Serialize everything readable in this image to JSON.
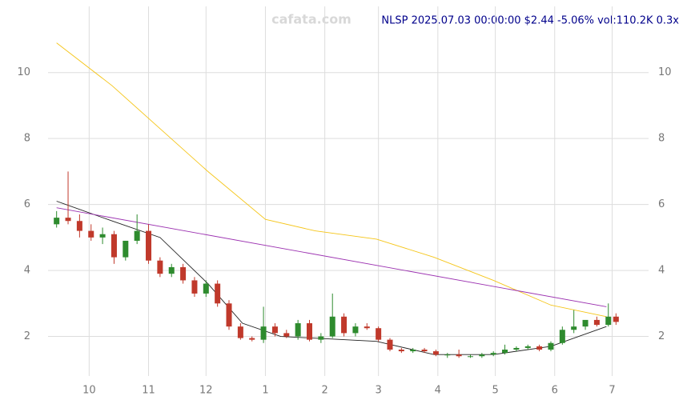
{
  "chart_data": {
    "type": "candlestick",
    "title": "NLSP 2025.07.03 00:00:00 $2.44 -5.06% vol:110.2K 0.3x",
    "watermark": "cafata.com",
    "xlim": [
      -34,
      292
    ],
    "ylim": [
      0.8,
      12.2
    ],
    "xticks": [
      {
        "value": 0,
        "label": "10"
      },
      {
        "value": 31,
        "label": "11"
      },
      {
        "value": 61,
        "label": "12"
      },
      {
        "value": 92,
        "label": "1"
      },
      {
        "value": 123,
        "label": "2"
      },
      {
        "value": 151,
        "label": "3"
      },
      {
        "value": 182,
        "label": "4"
      },
      {
        "value": 212,
        "label": "5"
      },
      {
        "value": 243,
        "label": "6"
      },
      {
        "value": 273,
        "label": "7"
      }
    ],
    "yticks": [
      2,
      4,
      6,
      8,
      10
    ],
    "grid": true,
    "up_color": "#2e8b2e",
    "down_color": "#c0392b",
    "candles": {
      "x": [
        -17,
        -11,
        -5,
        1,
        7,
        13,
        19,
        25,
        31,
        37,
        43,
        49,
        55,
        61,
        67,
        73,
        79,
        85,
        91,
        97,
        103,
        109,
        115,
        121,
        127,
        133,
        139,
        145,
        151,
        157,
        163,
        169,
        175,
        181,
        187,
        193,
        199,
        205,
        211,
        217,
        223,
        229,
        235,
        241,
        247,
        253,
        259,
        265,
        271,
        275
      ],
      "open": [
        5.4,
        5.6,
        5.5,
        5.2,
        5.0,
        5.1,
        4.4,
        4.9,
        5.2,
        4.3,
        3.9,
        4.1,
        3.7,
        3.3,
        3.6,
        3.0,
        2.3,
        1.95,
        1.9,
        2.3,
        2.1,
        2.0,
        2.4,
        1.9,
        2.0,
        2.6,
        2.1,
        2.3,
        2.25,
        1.9,
        1.6,
        1.55,
        1.6,
        1.55,
        1.45,
        1.45,
        1.4,
        1.4,
        1.45,
        1.5,
        1.6,
        1.65,
        1.7,
        1.6,
        1.8,
        2.2,
        2.3,
        2.5,
        2.35,
        2.6
      ],
      "high": [
        5.8,
        7.0,
        5.7,
        5.4,
        5.3,
        5.2,
        4.9,
        5.7,
        5.4,
        4.4,
        4.2,
        4.2,
        3.8,
        3.7,
        3.7,
        3.1,
        2.4,
        2.0,
        2.9,
        2.4,
        2.2,
        2.5,
        2.5,
        2.1,
        3.3,
        2.7,
        2.4,
        2.4,
        2.3,
        1.95,
        1.65,
        1.65,
        1.65,
        1.6,
        1.5,
        1.6,
        1.45,
        1.5,
        1.55,
        1.75,
        1.7,
        1.75,
        1.75,
        1.85,
        2.3,
        2.8,
        2.4,
        2.6,
        3.0,
        2.7
      ],
      "low": [
        5.3,
        5.4,
        5.0,
        4.9,
        4.8,
        4.2,
        4.3,
        4.8,
        4.2,
        3.8,
        3.8,
        3.6,
        3.2,
        3.2,
        2.9,
        2.2,
        1.9,
        1.85,
        1.8,
        2.0,
        1.95,
        1.9,
        1.85,
        1.8,
        1.95,
        2.0,
        2.0,
        2.2,
        1.85,
        1.55,
        1.5,
        1.5,
        1.5,
        1.4,
        1.35,
        1.35,
        1.35,
        1.35,
        1.4,
        1.45,
        1.55,
        1.6,
        1.55,
        1.55,
        1.75,
        2.1,
        2.2,
        2.3,
        2.3,
        2.35
      ],
      "close": [
        5.6,
        5.5,
        5.2,
        5.0,
        5.1,
        4.4,
        4.9,
        5.2,
        4.3,
        3.9,
        4.1,
        3.7,
        3.3,
        3.6,
        3.0,
        2.3,
        1.95,
        1.9,
        2.3,
        2.1,
        2.0,
        2.4,
        1.9,
        2.0,
        2.6,
        2.1,
        2.3,
        2.25,
        1.9,
        1.6,
        1.55,
        1.6,
        1.55,
        1.45,
        1.45,
        1.4,
        1.4,
        1.45,
        1.5,
        1.6,
        1.65,
        1.7,
        1.6,
        1.8,
        2.2,
        2.3,
        2.5,
        2.35,
        2.6,
        2.44
      ]
    },
    "lines": [
      {
        "color": "#f5c518",
        "x": [
          -17,
          12,
          37,
          62,
          92,
          118,
          150,
          180,
          211,
          241,
          270
        ],
        "values": [
          10.9,
          9.6,
          8.3,
          7.0,
          5.55,
          5.2,
          4.95,
          4.4,
          3.7,
          2.95,
          2.6
        ]
      },
      {
        "color": "#222222",
        "x": [
          -17,
          12,
          37,
          62,
          80,
          100,
          150,
          180,
          211,
          241,
          270
        ],
        "values": [
          6.1,
          5.5,
          5.0,
          3.6,
          2.4,
          2.0,
          1.85,
          1.45,
          1.45,
          1.7,
          2.3
        ]
      },
      {
        "color": "#9b30b0",
        "x": [
          -17,
          270
        ],
        "values": [
          5.9,
          2.9
        ]
      }
    ]
  }
}
